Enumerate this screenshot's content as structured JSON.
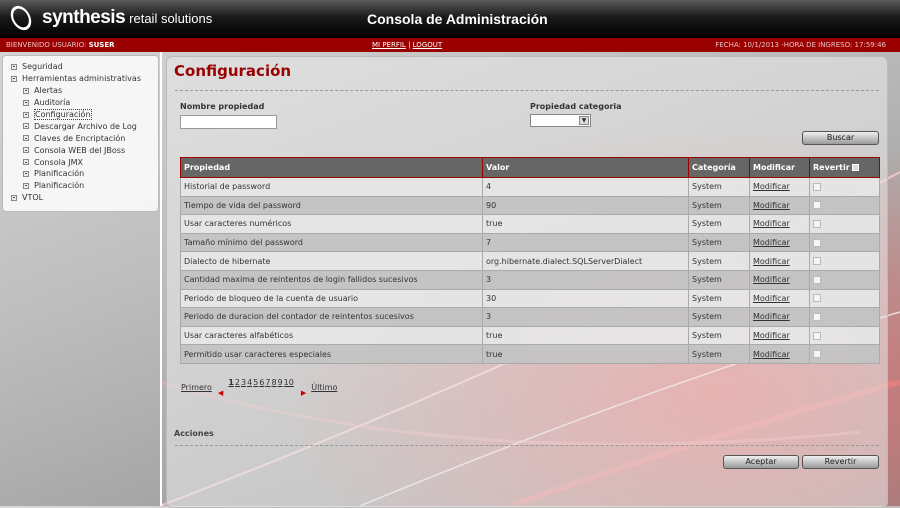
{
  "header": {
    "brand": "synthesis",
    "brand_sub": "retail solutions",
    "title": "Consola de Administración"
  },
  "topbar": {
    "welcome_label": "BIENVENIDO USUARIO:",
    "user": "SUSER",
    "profile_link": "MI PERFIL",
    "separator": "|",
    "logout_link": "LOGOUT",
    "date_info": "FECHA: 10/1/2013 -HORA DE INGRESO: 17:59:46"
  },
  "colors": {
    "brand_red": "#9a0000",
    "header_black": "#000000",
    "table_header": "#666666"
  },
  "sidebar": {
    "items": [
      {
        "label": "Seguridad",
        "level": 0
      },
      {
        "label": "Herramientas administrativas",
        "level": 0,
        "expanded": true
      },
      {
        "label": "Alertas",
        "level": 1
      },
      {
        "label": "Auditoría",
        "level": 1
      },
      {
        "label": "Configuración",
        "level": 1,
        "selected": true
      },
      {
        "label": "Descargar Archivo de Log",
        "level": 1
      },
      {
        "label": "Claves de Encriptación",
        "level": 1
      },
      {
        "label": "Consola WEB del JBoss",
        "level": 1
      },
      {
        "label": "Consola JMX",
        "level": 1
      },
      {
        "label": "Planificación",
        "level": 1
      },
      {
        "label": "Planificación",
        "level": 1
      },
      {
        "label": "VTOL",
        "level": 0
      }
    ]
  },
  "main": {
    "title": "Configuración",
    "filters": {
      "property_name_label": "Nombre propiedad",
      "property_name_value": "",
      "category_label": "Propiedad categoria",
      "category_value": ""
    },
    "search_button": "Buscar",
    "table": {
      "columns": [
        "Propiedad",
        "Valor",
        "Categoría",
        "Modificar",
        "Revertir"
      ],
      "rows": [
        [
          "Historial de password",
          "4",
          "System",
          "Modificar"
        ],
        [
          "Tiempo de vida del password",
          "90",
          "System",
          "Modificar"
        ],
        [
          "Usar caracteres numéricos",
          "true",
          "System",
          "Modificar"
        ],
        [
          "Tamaño mínimo del password",
          "7",
          "System",
          "Modificar"
        ],
        [
          "Dialecto de hibernate",
          "org.hibernate.dialect.SQLServerDialect",
          "System",
          "Modificar"
        ],
        [
          "Cantidad maxima de reintentos de login fallidos sucesivos",
          "3",
          "System",
          "Modificar"
        ],
        [
          "Periodo de bloqueo de la cuenta de usuario",
          "30",
          "System",
          "Modificar"
        ],
        [
          "Periodo de duracion del contador de reintentos sucesivos",
          "3",
          "System",
          "Modificar"
        ],
        [
          "Usar caracteres alfabéticos",
          "true",
          "System",
          "Modificar"
        ],
        [
          "Permitido usar caracteres especiales",
          "true",
          "System",
          "Modificar"
        ]
      ]
    },
    "pager": {
      "first": "Primero",
      "last": "Último",
      "pages": [
        "1",
        "2",
        "3",
        "4",
        "5",
        "6",
        "7",
        "8",
        "9",
        "10"
      ],
      "current": "1"
    },
    "actions_label": "Acciones",
    "accept_button": "Aceptar",
    "revert_button": "Revertir"
  }
}
